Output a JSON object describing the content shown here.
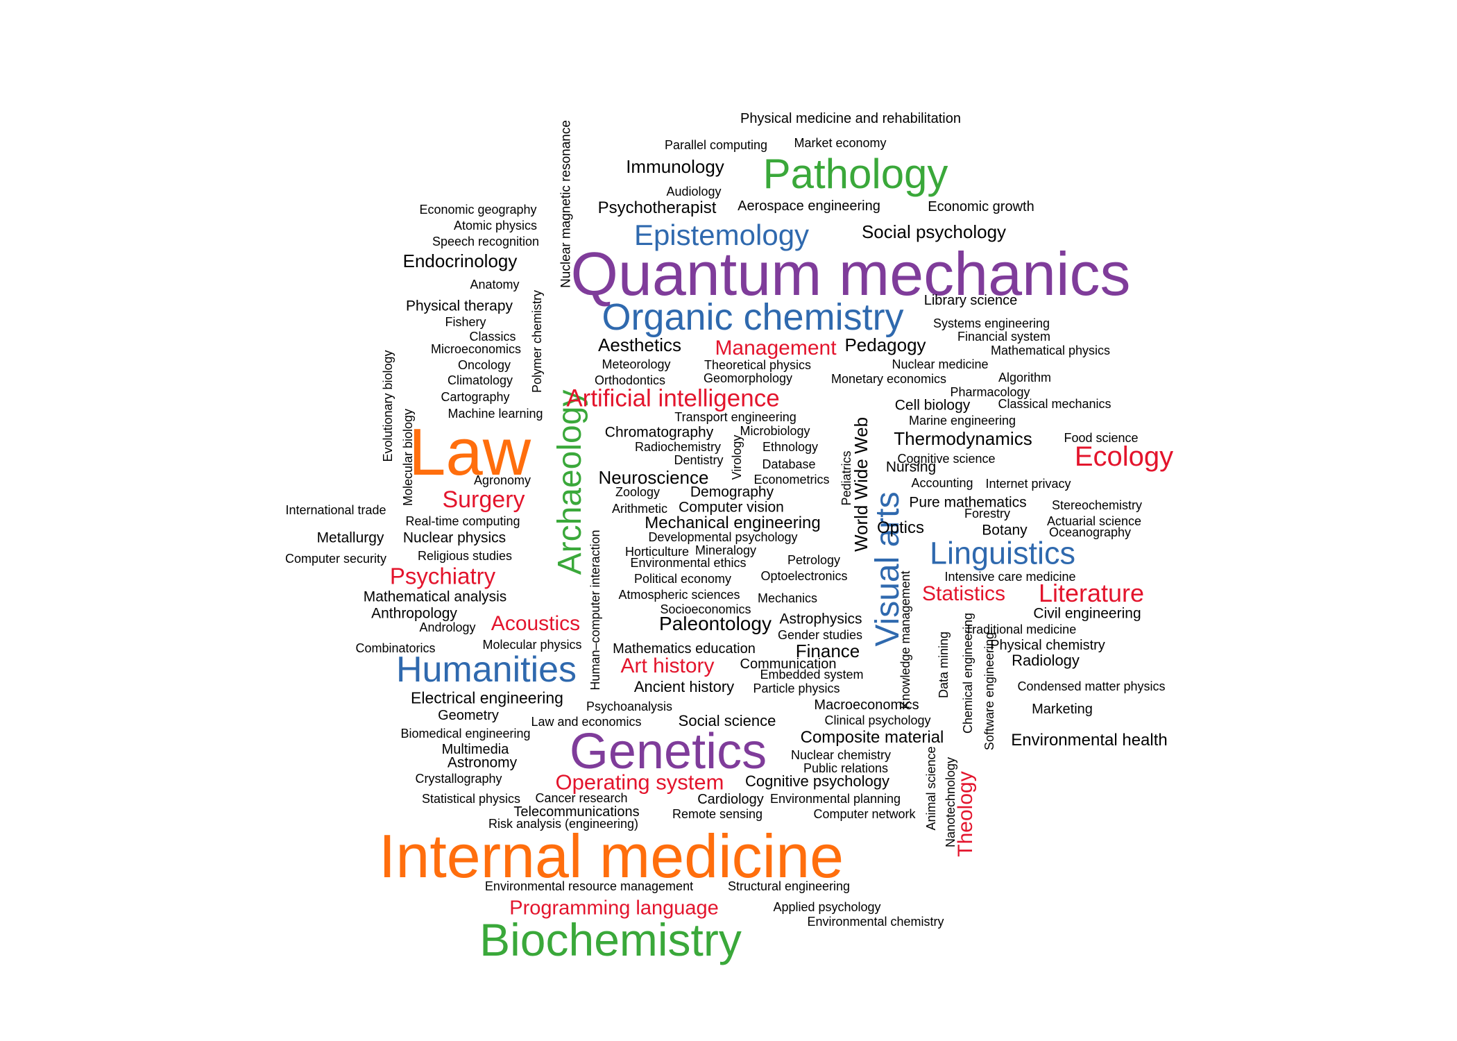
{
  "word_cloud": {
    "palette": {
      "black": "#000000",
      "orange": "#FF6E0D",
      "purple": "#7F3C9A",
      "blue": "#2F69AE",
      "green": "#3AA83A",
      "red": "#E3142C"
    },
    "words": [
      {
        "text": "Quantum mechanics",
        "color": "purple"
      },
      {
        "text": "Internal medicine",
        "color": "orange"
      },
      {
        "text": "Law",
        "color": "orange"
      },
      {
        "text": "Genetics",
        "color": "purple"
      },
      {
        "text": "Pathology",
        "color": "green"
      },
      {
        "text": "Biochemistry",
        "color": "green"
      },
      {
        "text": "Organic chemistry",
        "color": "blue"
      },
      {
        "text": "Archaeology",
        "color": "green"
      },
      {
        "text": "Humanities",
        "color": "blue"
      },
      {
        "text": "Visual arts",
        "color": "blue"
      },
      {
        "text": "Epistemology",
        "color": "blue"
      },
      {
        "text": "Linguistics",
        "color": "blue"
      },
      {
        "text": "Ecology",
        "color": "red"
      },
      {
        "text": "Artificial intelligence",
        "color": "red"
      },
      {
        "text": "Surgery",
        "color": "red"
      },
      {
        "text": "Psychiatry",
        "color": "red"
      },
      {
        "text": "Literature",
        "color": "red"
      },
      {
        "text": "Operating system",
        "color": "red"
      },
      {
        "text": "Programming language",
        "color": "red"
      },
      {
        "text": "Management",
        "color": "red"
      },
      {
        "text": "Art history",
        "color": "red"
      },
      {
        "text": "Acoustics",
        "color": "red"
      },
      {
        "text": "Statistics",
        "color": "red"
      },
      {
        "text": "Theology",
        "color": "red"
      },
      {
        "text": "Physical medicine and rehabilitation",
        "color": "black"
      },
      {
        "text": "Parallel computing",
        "color": "black"
      },
      {
        "text": "Market economy",
        "color": "black"
      },
      {
        "text": "Immunology",
        "color": "black"
      },
      {
        "text": "Audiology",
        "color": "black"
      },
      {
        "text": "Psychotherapist",
        "color": "black"
      },
      {
        "text": "Aerospace engineering",
        "color": "black"
      },
      {
        "text": "Economic growth",
        "color": "black"
      },
      {
        "text": "Economic geography",
        "color": "black"
      },
      {
        "text": "Atomic physics",
        "color": "black"
      },
      {
        "text": "Speech recognition",
        "color": "black"
      },
      {
        "text": "Social psychology",
        "color": "black"
      },
      {
        "text": "Endocrinology",
        "color": "black"
      },
      {
        "text": "Anatomy",
        "color": "black"
      },
      {
        "text": "Physical therapy",
        "color": "black"
      },
      {
        "text": "Fishery",
        "color": "black"
      },
      {
        "text": "Classics",
        "color": "black"
      },
      {
        "text": "Microeconomics",
        "color": "black"
      },
      {
        "text": "Oncology",
        "color": "black"
      },
      {
        "text": "Climatology",
        "color": "black"
      },
      {
        "text": "Cartography",
        "color": "black"
      },
      {
        "text": "Machine learning",
        "color": "black"
      },
      {
        "text": "Library science",
        "color": "black"
      },
      {
        "text": "Systems engineering",
        "color": "black"
      },
      {
        "text": "Financial system",
        "color": "black"
      },
      {
        "text": "Mathematical physics",
        "color": "black"
      },
      {
        "text": "Aesthetics",
        "color": "black"
      },
      {
        "text": "Pedagogy",
        "color": "black"
      },
      {
        "text": "Meteorology",
        "color": "black"
      },
      {
        "text": "Theoretical physics",
        "color": "black"
      },
      {
        "text": "Nuclear medicine",
        "color": "black"
      },
      {
        "text": "Orthodontics",
        "color": "black"
      },
      {
        "text": "Geomorphology",
        "color": "black"
      },
      {
        "text": "Monetary economics",
        "color": "black"
      },
      {
        "text": "Algorithm",
        "color": "black"
      },
      {
        "text": "Pharmacology",
        "color": "black"
      },
      {
        "text": "Cell biology",
        "color": "black"
      },
      {
        "text": "Classical mechanics",
        "color": "black"
      },
      {
        "text": "Transport engineering",
        "color": "black"
      },
      {
        "text": "Marine engineering",
        "color": "black"
      },
      {
        "text": "Chromatography",
        "color": "black"
      },
      {
        "text": "Microbiology",
        "color": "black"
      },
      {
        "text": "Thermodynamics",
        "color": "black"
      },
      {
        "text": "Food science",
        "color": "black"
      },
      {
        "text": "Radiochemistry",
        "color": "black"
      },
      {
        "text": "Ethnology",
        "color": "black"
      },
      {
        "text": "Dentistry",
        "color": "black"
      },
      {
        "text": "Database",
        "color": "black"
      },
      {
        "text": "Cognitive science",
        "color": "black"
      },
      {
        "text": "Nursing",
        "color": "black"
      },
      {
        "text": "Agronomy",
        "color": "black"
      },
      {
        "text": "Neuroscience",
        "color": "black"
      },
      {
        "text": "Econometrics",
        "color": "black"
      },
      {
        "text": "Accounting",
        "color": "black"
      },
      {
        "text": "Internet privacy",
        "color": "black"
      },
      {
        "text": "Zoology",
        "color": "black"
      },
      {
        "text": "Demography",
        "color": "black"
      },
      {
        "text": "Arithmetic",
        "color": "black"
      },
      {
        "text": "Computer vision",
        "color": "black"
      },
      {
        "text": "Pure mathematics",
        "color": "black"
      },
      {
        "text": "Stereochemistry",
        "color": "black"
      },
      {
        "text": "International trade",
        "color": "black"
      },
      {
        "text": "Real-time computing",
        "color": "black"
      },
      {
        "text": "Mechanical engineering",
        "color": "black"
      },
      {
        "text": "Forestry",
        "color": "black"
      },
      {
        "text": "Actuarial science",
        "color": "black"
      },
      {
        "text": "Metallurgy",
        "color": "black"
      },
      {
        "text": "Nuclear physics",
        "color": "black"
      },
      {
        "text": "Developmental psychology",
        "color": "black"
      },
      {
        "text": "Optics",
        "color": "black"
      },
      {
        "text": "Botany",
        "color": "black"
      },
      {
        "text": "Oceanography",
        "color": "black"
      },
      {
        "text": "Computer security",
        "color": "black"
      },
      {
        "text": "Religious studies",
        "color": "black"
      },
      {
        "text": "Horticulture",
        "color": "black"
      },
      {
        "text": "Mineralogy",
        "color": "black"
      },
      {
        "text": "Petrology",
        "color": "black"
      },
      {
        "text": "Environmental ethics",
        "color": "black"
      },
      {
        "text": "Political economy",
        "color": "black"
      },
      {
        "text": "Optoelectronics",
        "color": "black"
      },
      {
        "text": "Intensive care medicine",
        "color": "black"
      },
      {
        "text": "Mathematical analysis",
        "color": "black"
      },
      {
        "text": "Atmospheric sciences",
        "color": "black"
      },
      {
        "text": "Mechanics",
        "color": "black"
      },
      {
        "text": "Anthropology",
        "color": "black"
      },
      {
        "text": "Socioeconomics",
        "color": "black"
      },
      {
        "text": "Civil engineering",
        "color": "black"
      },
      {
        "text": "Andrology",
        "color": "black"
      },
      {
        "text": "Paleontology",
        "color": "black"
      },
      {
        "text": "Astrophysics",
        "color": "black"
      },
      {
        "text": "Traditional medicine",
        "color": "black"
      },
      {
        "text": "Gender studies",
        "color": "black"
      },
      {
        "text": "Combinatorics",
        "color": "black"
      },
      {
        "text": "Molecular physics",
        "color": "black"
      },
      {
        "text": "Mathematics education",
        "color": "black"
      },
      {
        "text": "Finance",
        "color": "black"
      },
      {
        "text": "Physical chemistry",
        "color": "black"
      },
      {
        "text": "Communication",
        "color": "black"
      },
      {
        "text": "Radiology",
        "color": "black"
      },
      {
        "text": "Embedded system",
        "color": "black"
      },
      {
        "text": "Ancient history",
        "color": "black"
      },
      {
        "text": "Particle physics",
        "color": "black"
      },
      {
        "text": "Condensed matter physics",
        "color": "black"
      },
      {
        "text": "Electrical engineering",
        "color": "black"
      },
      {
        "text": "Psychoanalysis",
        "color": "black"
      },
      {
        "text": "Macroeconomics",
        "color": "black"
      },
      {
        "text": "Marketing",
        "color": "black"
      },
      {
        "text": "Geometry",
        "color": "black"
      },
      {
        "text": "Social science",
        "color": "black"
      },
      {
        "text": "Clinical psychology",
        "color": "black"
      },
      {
        "text": "Law and economics",
        "color": "black"
      },
      {
        "text": "Biomedical engineering",
        "color": "black"
      },
      {
        "text": "Composite material",
        "color": "black"
      },
      {
        "text": "Environmental health",
        "color": "black"
      },
      {
        "text": "Multimedia",
        "color": "black"
      },
      {
        "text": "Nuclear chemistry",
        "color": "black"
      },
      {
        "text": "Astronomy",
        "color": "black"
      },
      {
        "text": "Public relations",
        "color": "black"
      },
      {
        "text": "Crystallography",
        "color": "black"
      },
      {
        "text": "Cognitive psychology",
        "color": "black"
      },
      {
        "text": "Statistical physics",
        "color": "black"
      },
      {
        "text": "Cancer research",
        "color": "black"
      },
      {
        "text": "Cardiology",
        "color": "black"
      },
      {
        "text": "Environmental planning",
        "color": "black"
      },
      {
        "text": "Telecommunications",
        "color": "black"
      },
      {
        "text": "Remote sensing",
        "color": "black"
      },
      {
        "text": "Computer network",
        "color": "black"
      },
      {
        "text": "Risk analysis (engineering)",
        "color": "black"
      },
      {
        "text": "Environmental resource management",
        "color": "black"
      },
      {
        "text": "Structural engineering",
        "color": "black"
      },
      {
        "text": "Applied psychology",
        "color": "black"
      },
      {
        "text": "Environmental chemistry",
        "color": "black"
      },
      {
        "text": "Nuclear magnetic resonance",
        "color": "black"
      },
      {
        "text": "Polymer chemistry",
        "color": "black"
      },
      {
        "text": "Evolutionary biology",
        "color": "black"
      },
      {
        "text": "Molecular biology",
        "color": "black"
      },
      {
        "text": "Virology",
        "color": "black"
      },
      {
        "text": "Pediatrics",
        "color": "black"
      },
      {
        "text": "World Wide Web",
        "color": "black"
      },
      {
        "text": "Human–computer interaction",
        "color": "black"
      },
      {
        "text": "Knowledge management",
        "color": "black"
      },
      {
        "text": "Data mining",
        "color": "black"
      },
      {
        "text": "Chemical engineering",
        "color": "black"
      },
      {
        "text": "Software engineering",
        "color": "black"
      },
      {
        "text": "Animal science",
        "color": "black"
      },
      {
        "text": "Nanotechnology",
        "color": "black"
      }
    ]
  }
}
